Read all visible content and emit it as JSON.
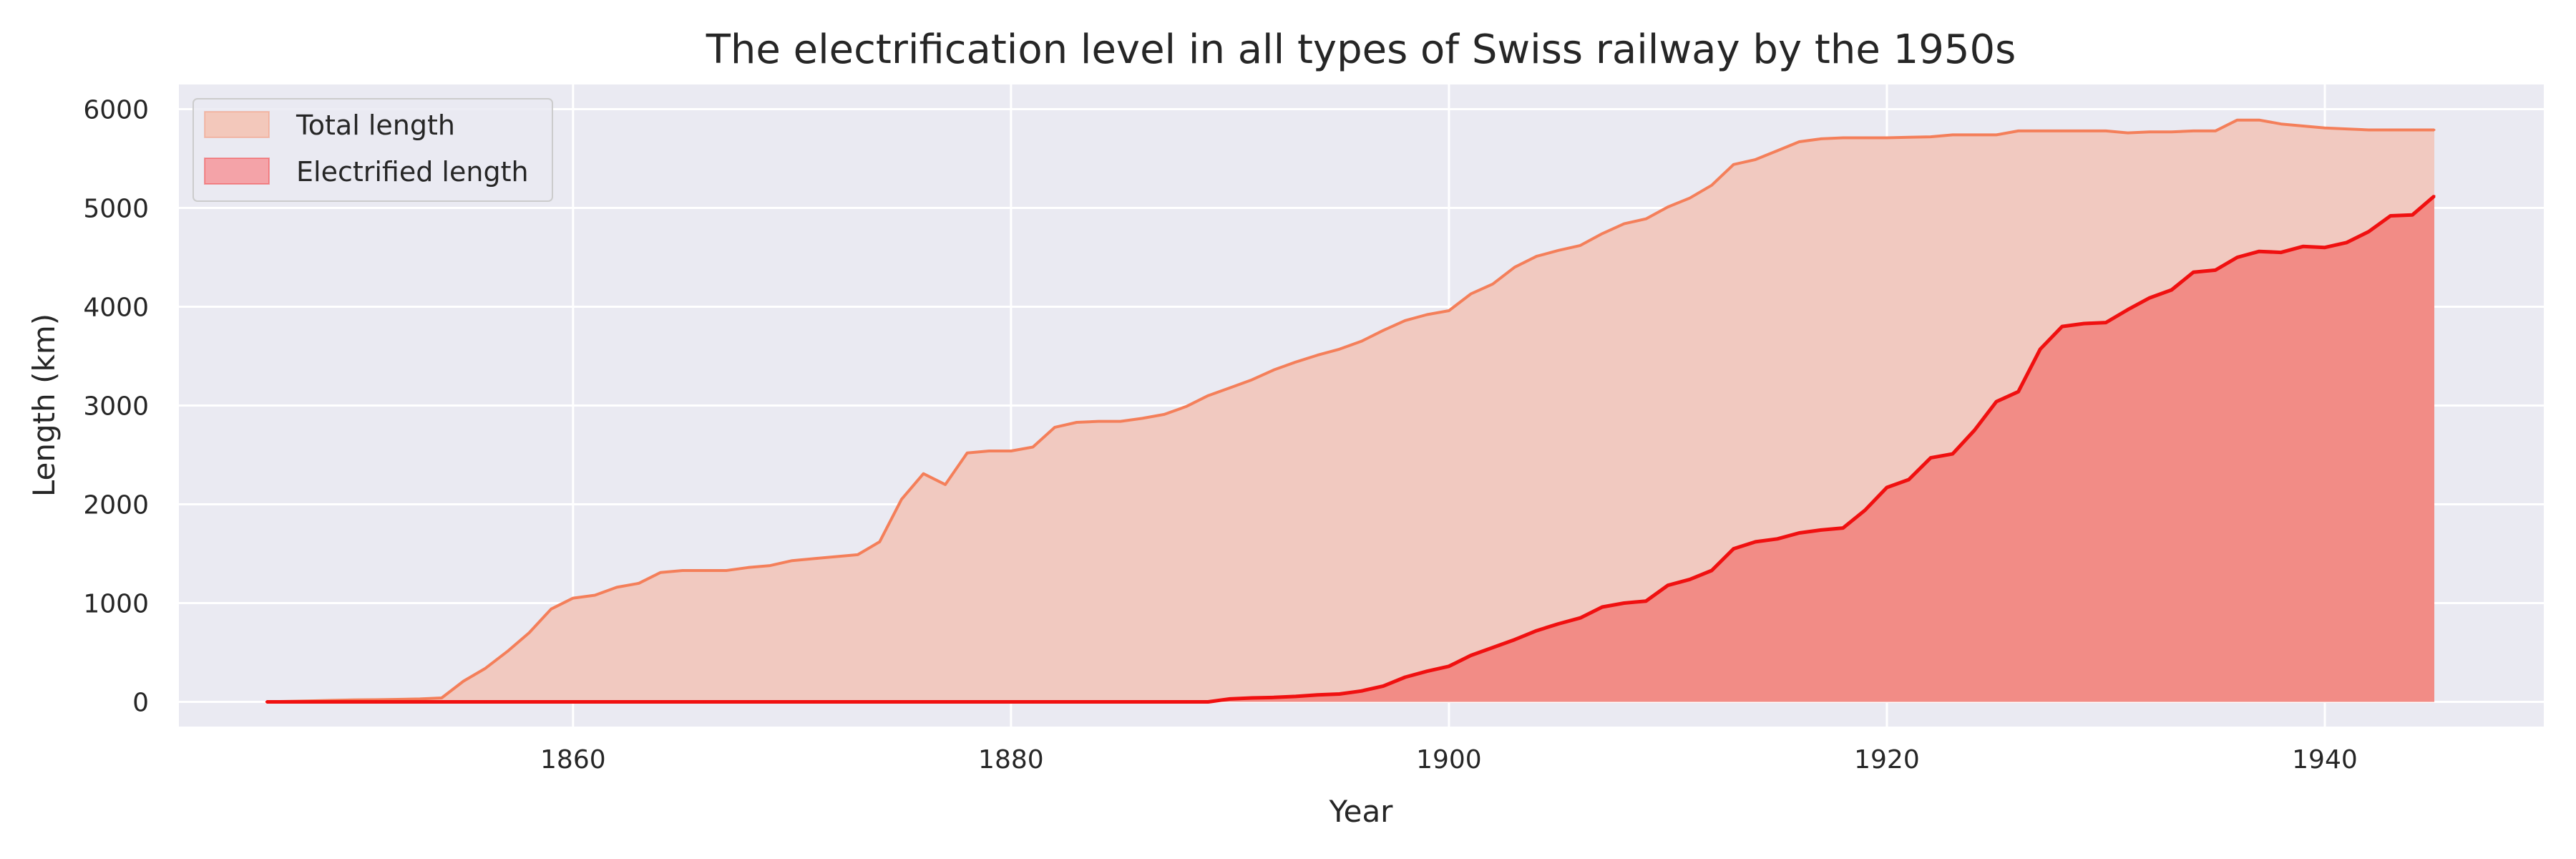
{
  "chart_data": {
    "type": "area",
    "title": "The electrification level in all types of Swiss railway by the 1950s",
    "xlabel": "Year",
    "ylabel": "Length (km)",
    "xlim": [
      1842,
      1950
    ],
    "ylim": [
      -250,
      6250
    ],
    "xticks": [
      1860,
      1880,
      1900,
      1920,
      1940
    ],
    "yticks": [
      0,
      1000,
      2000,
      3000,
      4000,
      5000,
      6000
    ],
    "grid": true,
    "legend_position": "top-left",
    "colors": {
      "background": "#eaeaf2",
      "grid": "#ffffff",
      "total_fill": "#f1c9c0",
      "total_line": "#f47f5a",
      "electrified_fill": "#f28c86",
      "electrified_line": "#f01010",
      "legend_total_fill": "#f3c8bb",
      "legend_elec_fill": "#f4a3a8"
    },
    "series": [
      {
        "name": "Total length",
        "x": [
          1846,
          1847,
          1848,
          1849,
          1850,
          1851,
          1852,
          1853,
          1854,
          1855,
          1856,
          1857,
          1858,
          1859,
          1860,
          1861,
          1862,
          1863,
          1864,
          1865,
          1866,
          1867,
          1868,
          1869,
          1870,
          1871,
          1872,
          1873,
          1874,
          1875,
          1876,
          1877,
          1878,
          1879,
          1880,
          1881,
          1882,
          1883,
          1884,
          1885,
          1886,
          1887,
          1888,
          1889,
          1890,
          1891,
          1892,
          1893,
          1894,
          1895,
          1896,
          1897,
          1898,
          1899,
          1900,
          1901,
          1902,
          1903,
          1904,
          1905,
          1906,
          1907,
          1908,
          1909,
          1910,
          1911,
          1912,
          1913,
          1914,
          1915,
          1916,
          1917,
          1918,
          1919,
          1920,
          1921,
          1922,
          1923,
          1924,
          1925,
          1926,
          1927,
          1928,
          1929,
          1930,
          1931,
          1932,
          1933,
          1934,
          1935,
          1936,
          1937,
          1938,
          1939,
          1940,
          1941,
          1942,
          1943,
          1944,
          1945
        ],
        "values": [
          0,
          5,
          10,
          15,
          20,
          22,
          25,
          30,
          40,
          210,
          340,
          510,
          700,
          940,
          1050,
          1080,
          1160,
          1200,
          1310,
          1330,
          1330,
          1330,
          1360,
          1380,
          1430,
          1450,
          1470,
          1490,
          1620,
          2050,
          2310,
          2200,
          2520,
          2540,
          2540,
          2580,
          2780,
          2830,
          2840,
          2840,
          2870,
          2910,
          2990,
          3100,
          3180,
          3260,
          3360,
          3440,
          3510,
          3570,
          3650,
          3760,
          3860,
          3920,
          3960,
          4130,
          4230,
          4400,
          4510,
          4570,
          4620,
          4740,
          4840,
          4890,
          5010,
          5100,
          5230,
          5440,
          5490,
          5580,
          5670,
          5700,
          5710,
          5710,
          5710,
          5715,
          5720,
          5740,
          5740,
          5740,
          5780,
          5780,
          5780,
          5780,
          5780,
          5760,
          5770,
          5770,
          5780,
          5780,
          5890,
          5890,
          5850,
          5830,
          5810,
          5800,
          5790,
          5790,
          5790,
          5790
        ]
      },
      {
        "name": "Electrified length",
        "x": [
          1846,
          1847,
          1848,
          1849,
          1850,
          1851,
          1852,
          1853,
          1854,
          1855,
          1856,
          1857,
          1858,
          1859,
          1860,
          1861,
          1862,
          1863,
          1864,
          1865,
          1866,
          1867,
          1868,
          1869,
          1870,
          1871,
          1872,
          1873,
          1874,
          1875,
          1876,
          1877,
          1878,
          1879,
          1880,
          1881,
          1882,
          1883,
          1884,
          1885,
          1886,
          1887,
          1888,
          1889,
          1890,
          1891,
          1892,
          1893,
          1894,
          1895,
          1896,
          1897,
          1898,
          1899,
          1900,
          1901,
          1902,
          1903,
          1904,
          1905,
          1906,
          1907,
          1908,
          1909,
          1910,
          1911,
          1912,
          1913,
          1914,
          1915,
          1916,
          1917,
          1918,
          1919,
          1920,
          1921,
          1922,
          1923,
          1924,
          1925,
          1926,
          1927,
          1928,
          1929,
          1930,
          1931,
          1932,
          1933,
          1934,
          1935,
          1936,
          1937,
          1938,
          1939,
          1940,
          1941,
          1942,
          1943,
          1944,
          1945
        ],
        "values": [
          0,
          0,
          0,
          0,
          0,
          0,
          0,
          0,
          0,
          0,
          0,
          0,
          0,
          0,
          0,
          0,
          0,
          0,
          0,
          0,
          0,
          0,
          0,
          0,
          0,
          0,
          0,
          0,
          0,
          0,
          0,
          0,
          0,
          0,
          0,
          0,
          0,
          0,
          0,
          0,
          0,
          0,
          0,
          0,
          30,
          40,
          45,
          55,
          70,
          80,
          110,
          160,
          250,
          310,
          360,
          470,
          550,
          630,
          720,
          790,
          850,
          960,
          1000,
          1020,
          1180,
          1240,
          1330,
          1550,
          1620,
          1650,
          1710,
          1740,
          1760,
          1940,
          2170,
          2250,
          2470,
          2510,
          2750,
          3040,
          3140,
          3570,
          3800,
          3830,
          3840,
          3970,
          4090,
          4170,
          4350,
          4370,
          4500,
          4560,
          4550,
          4610,
          4600,
          4650,
          4760,
          4920,
          4930,
          5120
        ]
      }
    ]
  }
}
